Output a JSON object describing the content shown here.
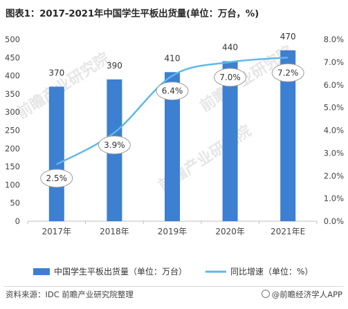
{
  "title": "图表1：2017-2021年中国学生平板出货量(单位：万台，%)",
  "source": "资料来源：IDC 前瞻产业研究院整理",
  "brand": "@前瞻经济学人APP",
  "watermark": "前瞻产业研究院",
  "colors": {
    "bar": "#3d7fd0",
    "line": "#5fb9e8",
    "axis": "#bfbfbf",
    "text": "#444444"
  },
  "chart_data": {
    "type": "bar",
    "categories": [
      "2017年",
      "2018年",
      "2019年",
      "2020年",
      "2021年E"
    ],
    "series": [
      {
        "name": "中国学生平板出货量（单位：万台）",
        "type": "bar",
        "axis": "left",
        "values": [
          370,
          390,
          410,
          440,
          470
        ],
        "labels": [
          "370",
          "390",
          "410",
          "440",
          "470"
        ]
      },
      {
        "name": "同比增速（单位：%）",
        "type": "line",
        "axis": "right",
        "values": [
          2.5,
          3.9,
          6.4,
          7.0,
          7.2
        ],
        "labels": [
          "2.5%",
          "3.9%",
          "6.4%",
          "7.0%",
          "7.2%"
        ]
      }
    ],
    "y_left": {
      "min": 0,
      "max": 500,
      "ticks": [
        "0",
        "50",
        "100",
        "150",
        "200",
        "250",
        "300",
        "350",
        "400",
        "450",
        "500"
      ]
    },
    "y_right": {
      "min": 0,
      "max": 8,
      "ticks": [
        "0.0%",
        "1.0%",
        "2.0%",
        "3.0%",
        "4.0%",
        "5.0%",
        "6.0%",
        "7.0%",
        "8.0%"
      ]
    },
    "legend_position": "bottom",
    "grid": false
  }
}
